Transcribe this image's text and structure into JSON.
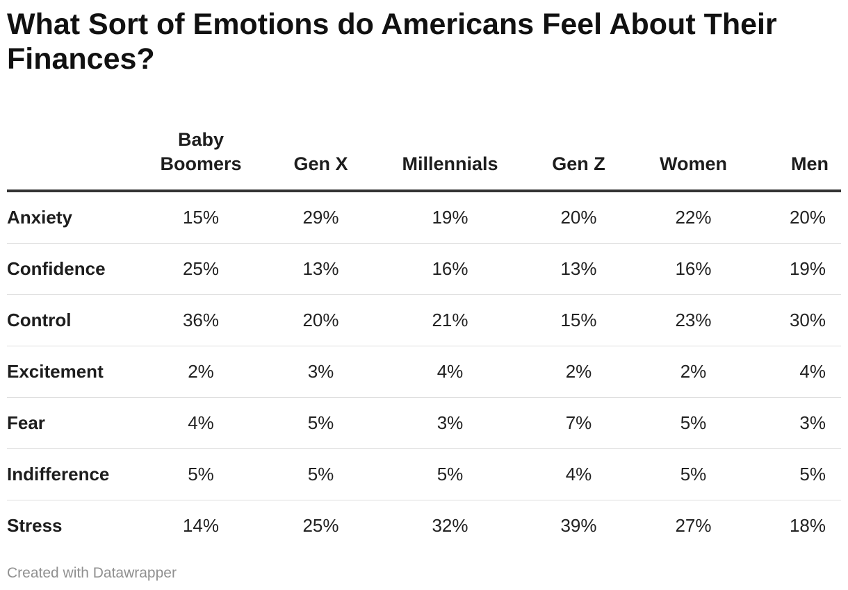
{
  "title": "What Sort of Emotions do Americans Feel About Their Finances?",
  "footer": "Created with Datawrapper",
  "chart_data": {
    "type": "table",
    "title": "What Sort of Emotions do Americans Feel About Their Finances?",
    "columns": [
      "Baby Boomers",
      "Gen X",
      "Millennials",
      "Gen Z",
      "Women",
      "Men"
    ],
    "rows": [
      {
        "label": "Anxiety",
        "values": [
          "15%",
          "29%",
          "19%",
          "20%",
          "22%",
          "20%"
        ]
      },
      {
        "label": "Confidence",
        "values": [
          "25%",
          "13%",
          "16%",
          "13%",
          "16%",
          "19%"
        ]
      },
      {
        "label": "Control",
        "values": [
          "36%",
          "20%",
          "21%",
          "15%",
          "23%",
          "30%"
        ]
      },
      {
        "label": "Excitement",
        "values": [
          "2%",
          "3%",
          "4%",
          "2%",
          "2%",
          "4%"
        ]
      },
      {
        "label": "Fear",
        "values": [
          "4%",
          "5%",
          "3%",
          "7%",
          "5%",
          "3%"
        ]
      },
      {
        "label": "Indifference",
        "values": [
          "5%",
          "5%",
          "5%",
          "4%",
          "5%",
          "5%"
        ]
      },
      {
        "label": "Stress",
        "values": [
          "14%",
          "25%",
          "32%",
          "39%",
          "27%",
          "18%"
        ]
      }
    ]
  }
}
